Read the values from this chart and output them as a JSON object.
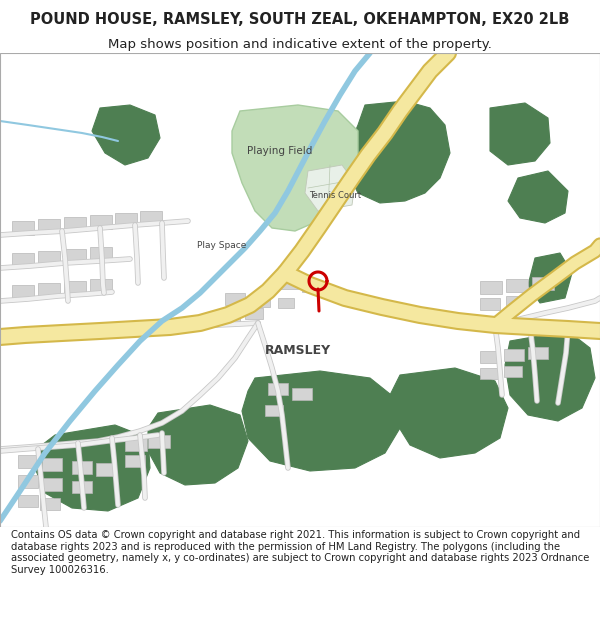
{
  "title_line1": "POUND HOUSE, RAMSLEY, SOUTH ZEAL, OKEHAMPTON, EX20 2LB",
  "title_line2": "Map shows position and indicative extent of the property.",
  "footer_text": "Contains OS data © Crown copyright and database right 2021. This information is subject to Crown copyright and database rights 2023 and is reproduced with the permission of HM Land Registry. The polygons (including the associated geometry, namely x, y co-ordinates) are subject to Crown copyright and database rights 2023 Ordnance Survey 100026316.",
  "background_color": "#ffffff",
  "green_dark": "#4e7f52",
  "green_light": "#c2ddb8",
  "road_main_fill": "#f5e8a0",
  "road_main_stroke": "#d4b84a",
  "road_minor_fill": "#f0f0f0",
  "road_minor_stroke": "#c8c8c8",
  "water_color": "#90c8e0",
  "building_color": "#d4d4d4",
  "building_stroke": "#b8b8b8",
  "marker_color": "#cc0000",
  "text_dark": "#222222",
  "text_label": "#444444",
  "title_fontsize": 10.5,
  "subtitle_fontsize": 9.5,
  "footer_fontsize": 7.2,
  "label_fontsize": 7.5
}
